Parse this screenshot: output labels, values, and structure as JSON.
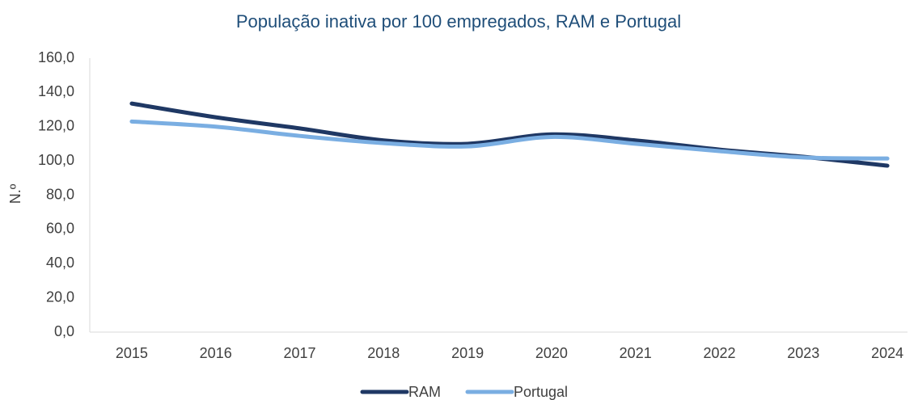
{
  "chart_data": {
    "type": "line",
    "title": "População inativa por 100 empregados, RAM e Portugal",
    "y_label": "N.º",
    "categories": [
      "2015",
      "2016",
      "2017",
      "2018",
      "2019",
      "2020",
      "2021",
      "2022",
      "2023",
      "2024"
    ],
    "series": [
      {
        "name": "RAM",
        "color": "#1f3864",
        "values": [
          133.5,
          125.5,
          119.0,
          112.0,
          110.0,
          115.5,
          112.0,
          106.6,
          102.4,
          97.2
        ]
      },
      {
        "name": "Portugal",
        "color": "#7aaee2",
        "values": [
          123.0,
          120.0,
          114.6,
          110.4,
          108.5,
          114.0,
          110.0,
          105.7,
          102.0,
          101.4
        ]
      }
    ],
    "ylim": [
      0,
      160
    ],
    "yticks": [
      {
        "value": 0,
        "label": "0,0"
      },
      {
        "value": 20,
        "label": "20,0"
      },
      {
        "value": 40,
        "label": "40,0"
      },
      {
        "value": 60,
        "label": "60,0"
      },
      {
        "value": 80,
        "label": "80,0"
      },
      {
        "value": 100,
        "label": "100,0"
      },
      {
        "value": 120,
        "label": "120,0"
      },
      {
        "value": 140,
        "label": "140,0"
      },
      {
        "value": 160,
        "label": "160,0"
      }
    ],
    "legend": "bottom"
  }
}
